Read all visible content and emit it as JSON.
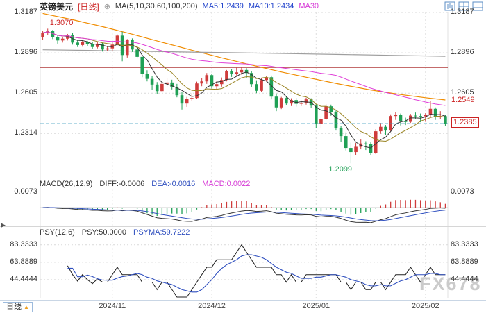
{
  "header": {
    "symbol": "英镑美元",
    "period_tag": "[日线]",
    "ma_label": "MA(5,10,30,60,100,200)",
    "ma5": "MA5:1.2439",
    "ma10": "MA10:1.2434",
    "ma30": "MA30"
  },
  "icons": {
    "plus_circle": "⊕",
    "period_up": "▲",
    "expand": "▶"
  },
  "macd_header": {
    "name": "MACD(26,12,9)",
    "diff": "DIFF:-0.0006",
    "dea": "DEA:-0.0016",
    "macd": "MACD:0.0022"
  },
  "psy_header": {
    "name": "PSY(12,6)",
    "psy": "PSY:50.0000",
    "psyma": "PSYMA:59.7222"
  },
  "bottom": {
    "period": "日线"
  },
  "watermark": "FX678",
  "chart_data": {
    "type": "candlestick",
    "title": "英镑美元 日线",
    "month_labels": [
      "2024/11",
      "2024/12",
      "2025/01",
      "2025/02"
    ],
    "month_start_indices": [
      14,
      34,
      55,
      77
    ],
    "candles": [
      [
        1.3008,
        1.3052,
        1.299,
        1.304
      ],
      [
        1.304,
        1.307,
        1.3022,
        1.3055
      ],
      [
        1.3055,
        1.3061,
        1.2995,
        1.301
      ],
      [
        1.301,
        1.3025,
        1.2962,
        1.2985
      ],
      [
        1.2985,
        1.3012,
        1.297,
        1.2998
      ],
      [
        1.2998,
        1.3032,
        1.2985,
        1.3025
      ],
      [
        1.3025,
        1.3038,
        1.2955,
        1.297
      ],
      [
        1.297,
        1.299,
        1.2938,
        1.2952
      ],
      [
        1.2952,
        1.2988,
        1.294,
        1.2975
      ],
      [
        1.2975,
        1.2982,
        1.2942,
        1.296
      ],
      [
        1.296,
        1.2975,
        1.2922,
        1.2938
      ],
      [
        1.2938,
        1.2975,
        1.2928,
        1.2962
      ],
      [
        1.2962,
        1.297,
        1.2905,
        1.292
      ],
      [
        1.292,
        1.2945,
        1.2908,
        1.2928
      ],
      [
        1.2928,
        1.2972,
        1.2912,
        1.2955
      ],
      [
        1.2955,
        1.3028,
        1.295,
        1.302
      ],
      [
        1.302,
        1.3048,
        1.2835,
        1.288
      ],
      [
        1.288,
        1.2995,
        1.2862,
        1.2988
      ],
      [
        1.2988,
        1.3,
        1.2902,
        1.292
      ],
      [
        1.292,
        1.2938,
        1.2855,
        1.2867
      ],
      [
        1.2867,
        1.2875,
        1.272,
        1.2745
      ],
      [
        1.2745,
        1.277,
        1.269,
        1.2708
      ],
      [
        1.2708,
        1.2728,
        1.263,
        1.2667
      ],
      [
        1.2667,
        1.2685,
        1.2598,
        1.262
      ],
      [
        1.262,
        1.2688,
        1.2612,
        1.2672
      ],
      [
        1.2672,
        1.2715,
        1.2648,
        1.2682
      ],
      [
        1.2682,
        1.2702,
        1.2632,
        1.265
      ],
      [
        1.265,
        1.2672,
        1.2575,
        1.259
      ],
      [
        1.259,
        1.2615,
        1.2487,
        1.253
      ],
      [
        1.253,
        1.2578,
        1.2506,
        1.2565
      ],
      [
        1.2565,
        1.2605,
        1.2548,
        1.257
      ],
      [
        1.257,
        1.2688,
        1.2562,
        1.2675
      ],
      [
        1.2675,
        1.2712,
        1.2655,
        1.269
      ],
      [
        1.269,
        1.275,
        1.2672,
        1.2735
      ],
      [
        1.2735,
        1.2742,
        1.2638,
        1.2655
      ],
      [
        1.2655,
        1.2692,
        1.2628,
        1.267
      ],
      [
        1.267,
        1.2718,
        1.2652,
        1.27
      ],
      [
        1.27,
        1.2772,
        1.269,
        1.2762
      ],
      [
        1.2762,
        1.2778,
        1.2722,
        1.2745
      ],
      [
        1.2745,
        1.2788,
        1.2732,
        1.2755
      ],
      [
        1.2755,
        1.279,
        1.2738,
        1.2772
      ],
      [
        1.2772,
        1.2785,
        1.2715,
        1.275
      ],
      [
        1.275,
        1.2762,
        1.2648,
        1.267
      ],
      [
        1.267,
        1.2698,
        1.2605,
        1.2622
      ],
      [
        1.2622,
        1.2712,
        1.2615,
        1.27
      ],
      [
        1.27,
        1.2728,
        1.2688,
        1.272
      ],
      [
        1.272,
        1.2732,
        1.256,
        1.258
      ],
      [
        1.258,
        1.2602,
        1.2475,
        1.2502
      ],
      [
        1.2502,
        1.2578,
        1.249,
        1.257
      ],
      [
        1.257,
        1.2582,
        1.2518,
        1.253
      ],
      [
        1.253,
        1.2568,
        1.2512,
        1.2555
      ],
      [
        1.2555,
        1.257,
        1.2508,
        1.2528
      ],
      [
        1.2528,
        1.2552,
        1.2512,
        1.2535
      ],
      [
        1.2535,
        1.2572,
        1.2522,
        1.256
      ],
      [
        1.256,
        1.2568,
        1.25,
        1.2515
      ],
      [
        1.2515,
        1.2525,
        1.2352,
        1.2382
      ],
      [
        1.2382,
        1.2438,
        1.2356,
        1.242
      ],
      [
        1.242,
        1.2525,
        1.2412,
        1.251
      ],
      [
        1.251,
        1.2522,
        1.2442,
        1.247
      ],
      [
        1.247,
        1.248,
        1.2335,
        1.2355
      ],
      [
        1.2355,
        1.237,
        1.2255,
        1.2295
      ],
      [
        1.2295,
        1.2322,
        1.2192,
        1.221
      ],
      [
        1.221,
        1.2248,
        1.2099,
        1.218
      ],
      [
        1.218,
        1.2245,
        1.216,
        1.2218
      ],
      [
        1.2218,
        1.227,
        1.22,
        1.2242
      ],
      [
        1.2242,
        1.2258,
        1.2195,
        1.2238
      ],
      [
        1.2238,
        1.225,
        1.2158,
        1.2172
      ],
      [
        1.2172,
        1.2345,
        1.2165,
        1.233
      ],
      [
        1.233,
        1.239,
        1.2312,
        1.2362
      ],
      [
        1.2362,
        1.2375,
        1.2305,
        1.2335
      ],
      [
        1.2335,
        1.2452,
        1.2328,
        1.244
      ],
      [
        1.244,
        1.2468,
        1.2412,
        1.2448
      ],
      [
        1.2448,
        1.2458,
        1.2372,
        1.2402
      ],
      [
        1.2402,
        1.2428,
        1.2375,
        1.2398
      ],
      [
        1.2398,
        1.2455,
        1.239,
        1.2443
      ],
      [
        1.2443,
        1.2465,
        1.2418,
        1.244
      ],
      [
        1.244,
        1.2458,
        1.2395,
        1.2438
      ],
      [
        1.2438,
        1.246,
        1.2398,
        1.2449
      ],
      [
        1.2449,
        1.2549,
        1.243,
        1.2492
      ],
      [
        1.2492,
        1.2502,
        1.2412,
        1.2432
      ],
      [
        1.2432,
        1.2475,
        1.2418,
        1.2439
      ],
      [
        1.2439,
        1.2448,
        1.2368,
        1.2385
      ]
    ],
    "main": {
      "y_top_value": 1.3187,
      "y_bottom_value": 1.1995,
      "ticks": [
        1.3187,
        1.2896,
        1.2605,
        1.2314
      ],
      "tick_labels": [
        "1.3187",
        "1.2896",
        "1.2605",
        "1.2314"
      ],
      "right_ticks": [
        1.3187,
        1.2896,
        1.2605
      ],
      "right_tick_labels": [
        "1.3187",
        "1.2896",
        "1.2605"
      ],
      "hline": {
        "value": 1.279
      },
      "last_price": {
        "value": 1.2385
      },
      "annotations": [
        {
          "type": "high",
          "text": "1.3070",
          "price": 1.307,
          "index": 1
        },
        {
          "type": "low",
          "text": "1.2099",
          "price": 1.2099,
          "index": 62
        },
        {
          "type": "right-label",
          "text": "1.2549",
          "price": 1.2549
        },
        {
          "type": "right-box",
          "text": "1.2385",
          "price": 1.2385
        }
      ],
      "ma_lines": [
        {
          "period": 5,
          "color": "#333333"
        },
        {
          "period": 10,
          "color": "#9a8422"
        },
        {
          "period": 60,
          "color": "#e03fd8"
        }
      ],
      "overlays": [
        {
          "name": "ma100",
          "color": "#f08c00",
          "points": [
            [
              0,
              1.318
            ],
            [
              6,
              1.3135
            ],
            [
              12,
              1.3085
            ],
            [
              18,
              1.303
            ],
            [
              24,
              1.2972
            ],
            [
              30,
              1.2915
            ],
            [
              36,
              1.286
            ],
            [
              42,
              1.2808
            ],
            [
              48,
              1.2758
            ],
            [
              54,
              1.2712
            ],
            [
              60,
              1.2668
            ],
            [
              66,
              1.2628
            ],
            [
              72,
              1.2595
            ],
            [
              77,
              1.2572
            ],
            [
              81,
              1.2556
            ]
          ]
        },
        {
          "name": "ma200",
          "color": "#9e9e9e",
          "points": [
            [
              0,
              1.2918
            ],
            [
              10,
              1.2913
            ],
            [
              20,
              1.2907
            ],
            [
              30,
              1.2901
            ],
            [
              40,
              1.2896
            ],
            [
              50,
              1.289
            ],
            [
              60,
              1.2884
            ],
            [
              70,
              1.2878
            ],
            [
              81,
              1.2871
            ]
          ]
        }
      ]
    },
    "macd": {
      "params": "26,12,9",
      "diff": -0.0006,
      "dea": -0.0016,
      "macd": 0.0022,
      "tick_value": 0.0073,
      "tick_label": "0.0073"
    },
    "psy": {
      "params": "12,6",
      "psy": 50.0,
      "psyma": 59.7222,
      "ticks": [
        83.3333,
        63.8889,
        44.4444
      ],
      "tick_labels": [
        "83.3333",
        "63.8889",
        "44.4444"
      ],
      "range": [
        25.0,
        91.6667
      ]
    },
    "colors": {
      "up": "#cf3b3b",
      "down": "#1fa055",
      "hline": "#b03a3a",
      "last_price": "#3a9bbf",
      "diff": "#333333",
      "dea": "#2f4fbf",
      "macd_pos": "#cf3b3b",
      "macd_neg": "#1fa055",
      "psy": "#222222",
      "psyma": "#2f4fbf",
      "accent_red": "#cc2222",
      "accent_green": "#1fa055"
    }
  }
}
